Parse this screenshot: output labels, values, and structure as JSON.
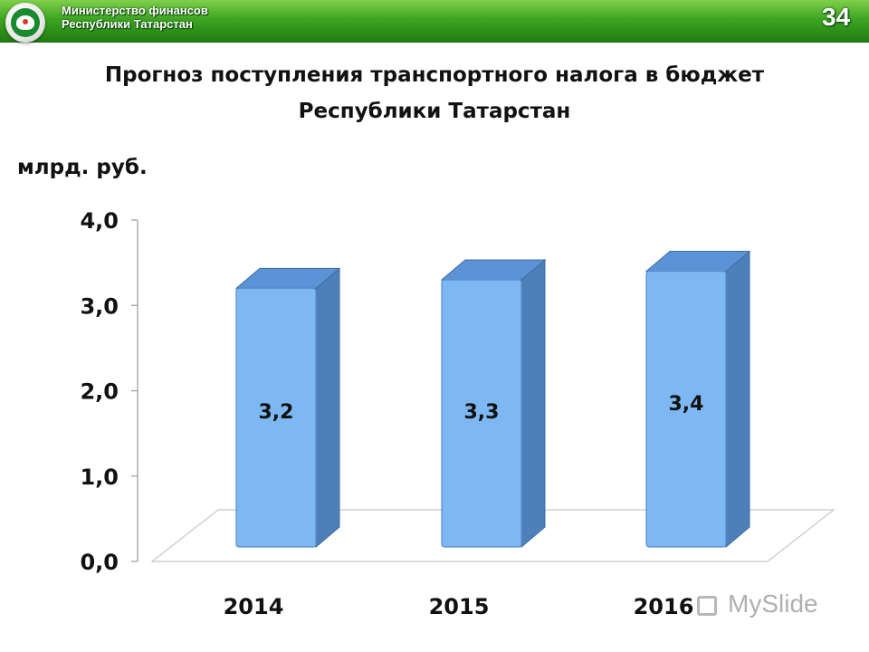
{
  "header": {
    "org_line1": "Министерство финансов",
    "org_line2": "Республики Татарстан",
    "page_number": "34",
    "accent_color": "#3ea623"
  },
  "slide": {
    "title_line1": "Прогноз поступления транспортного налога в бюджет",
    "title_line2": "Республики Татарстан",
    "unit_label": "млрд. руб."
  },
  "watermark": {
    "text": "MySlide"
  },
  "chart_data": {
    "type": "bar",
    "style": "3d",
    "categories": [
      "2014",
      "2015",
      "2016"
    ],
    "values": [
      3.2,
      3.3,
      3.4
    ],
    "data_labels": [
      "3,2",
      "3,3",
      "3,4"
    ],
    "ylim": [
      0,
      4
    ],
    "yticks": [
      {
        "value": 0,
        "label": "0,0"
      },
      {
        "value": 1,
        "label": "1,0"
      },
      {
        "value": 2,
        "label": "2,0"
      },
      {
        "value": 3,
        "label": "3,0"
      },
      {
        "value": 4,
        "label": "4,0"
      }
    ],
    "title": "",
    "xlabel": "",
    "ylabel": "млрд. руб.",
    "grid": false,
    "legend": false,
    "bar_color": "#7db8f2",
    "bar_side_color": "#4d7fb8",
    "bar_top_color": "#5b93d6"
  }
}
